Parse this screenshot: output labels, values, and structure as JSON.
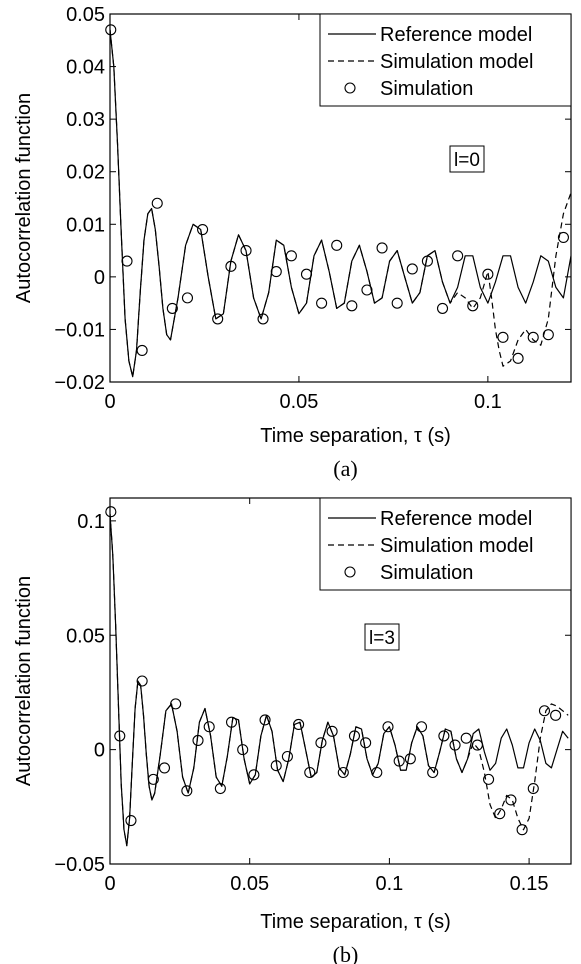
{
  "chart_data": [
    {
      "id": "a",
      "type": "line",
      "caption": "(a)",
      "annotation": "l=0",
      "xlabel": "Time separation, τ (s)",
      "ylabel": "Autocorrelation function",
      "xlim": [
        0,
        0.122
      ],
      "ylim": [
        -0.02,
        0.05
      ],
      "xticks": [
        0,
        0.05,
        0.1
      ],
      "xtick_labels": [
        "0",
        "0.05",
        "0.1"
      ],
      "yticks": [
        -0.02,
        -0.01,
        0,
        0.01,
        0.02,
        0.03,
        0.04,
        0.05
      ],
      "ytick_labels": [
        "−0.02",
        "−0.01",
        "0",
        "0.01",
        "0.02",
        "0.03",
        "0.04",
        "0.05"
      ],
      "legend_position": "top-right",
      "legend": [
        {
          "label": "Reference model",
          "style": "solid"
        },
        {
          "label": "Simulation model",
          "style": "dashed"
        },
        {
          "label": "Simulation",
          "style": "circle"
        }
      ],
      "series": [
        {
          "style": "solid",
          "x": [
            0,
            0.001,
            0.002,
            0.003,
            0.004,
            0.005,
            0.006,
            0.007,
            0.008,
            0.009,
            0.01,
            0.011,
            0.012,
            0.013,
            0.014,
            0.015,
            0.016,
            0.018,
            0.02,
            0.022,
            0.024,
            0.026,
            0.028,
            0.03,
            0.032,
            0.034,
            0.036,
            0.038,
            0.04,
            0.042,
            0.044,
            0.046,
            0.048,
            0.05,
            0.052,
            0.054,
            0.056,
            0.058,
            0.06,
            0.062,
            0.064,
            0.066,
            0.068,
            0.07,
            0.072,
            0.074,
            0.076,
            0.078,
            0.08,
            0.082,
            0.084,
            0.086,
            0.088,
            0.09,
            0.092,
            0.094,
            0.096,
            0.098,
            0.1,
            0.102,
            0.104,
            0.106,
            0.108,
            0.11,
            0.112,
            0.114,
            0.116,
            0.118,
            0.12,
            0.122
          ],
          "y": [
            0.047,
            0.04,
            0.025,
            0.008,
            -0.008,
            -0.016,
            -0.019,
            -0.014,
            -0.003,
            0.007,
            0.012,
            0.013,
            0.009,
            0.002,
            -0.006,
            -0.011,
            -0.012,
            -0.004,
            0.006,
            0.01,
            0.009,
            0.0,
            -0.008,
            -0.007,
            0.003,
            0.008,
            0.005,
            -0.004,
            -0.008,
            -0.003,
            0.007,
            0.006,
            -0.002,
            -0.007,
            -0.005,
            0.004,
            0.007,
            0.001,
            -0.006,
            -0.005,
            0.003,
            0.006,
            0.001,
            -0.005,
            -0.004,
            0.003,
            0.005,
            0.0,
            -0.005,
            -0.003,
            0.004,
            0.005,
            -0.001,
            -0.005,
            -0.002,
            0.004,
            0.004,
            -0.002,
            -0.005,
            -0.001,
            0.004,
            0.004,
            -0.002,
            -0.005,
            -0.001,
            0.004,
            0.003,
            -0.002,
            -0.004,
            0.004
          ]
        },
        {
          "style": "dashed",
          "x": [
            0,
            0.001,
            0.002,
            0.003,
            0.004,
            0.005,
            0.006,
            0.007,
            0.008,
            0.009,
            0.01,
            0.011,
            0.012,
            0.013,
            0.014,
            0.015,
            0.016,
            0.018,
            0.02,
            0.022,
            0.024,
            0.026,
            0.028,
            0.03,
            0.032,
            0.034,
            0.036,
            0.038,
            0.04,
            0.042,
            0.044,
            0.046,
            0.048,
            0.05,
            0.052,
            0.054,
            0.056,
            0.058,
            0.06,
            0.062,
            0.064,
            0.066,
            0.068,
            0.07,
            0.072,
            0.074,
            0.076,
            0.078,
            0.08,
            0.082,
            0.084,
            0.086,
            0.088,
            0.09,
            0.092,
            0.094,
            0.096,
            0.098,
            0.1,
            0.101,
            0.102,
            0.103,
            0.104,
            0.106,
            0.108,
            0.11,
            0.112,
            0.114,
            0.116,
            0.118,
            0.12,
            0.122
          ],
          "y": [
            0.047,
            0.04,
            0.025,
            0.008,
            -0.008,
            -0.016,
            -0.019,
            -0.014,
            -0.003,
            0.007,
            0.012,
            0.013,
            0.009,
            0.002,
            -0.006,
            -0.011,
            -0.012,
            -0.004,
            0.006,
            0.01,
            0.009,
            0.0,
            -0.008,
            -0.007,
            0.003,
            0.008,
            0.005,
            -0.004,
            -0.008,
            -0.003,
            0.007,
            0.006,
            -0.002,
            -0.007,
            -0.005,
            0.004,
            0.007,
            0.001,
            -0.006,
            -0.005,
            0.003,
            0.006,
            0.001,
            -0.005,
            -0.004,
            0.003,
            0.005,
            0.0,
            -0.005,
            -0.003,
            0.004,
            0.005,
            -0.001,
            -0.005,
            -0.003,
            -0.004,
            -0.006,
            -0.004,
            0.001,
            -0.004,
            -0.01,
            -0.014,
            -0.017,
            -0.016,
            -0.012,
            -0.01,
            -0.012,
            -0.013,
            -0.008,
            0.004,
            0.012,
            0.016
          ]
        },
        {
          "style": "circle",
          "x": [
            0.0002,
            0.0045,
            0.0085,
            0.0125,
            0.0165,
            0.0205,
            0.0245,
            0.0285,
            0.032,
            0.036,
            0.0405,
            0.044,
            0.048,
            0.052,
            0.056,
            0.06,
            0.064,
            0.068,
            0.072,
            0.076,
            0.08,
            0.084,
            0.088,
            0.092,
            0.096,
            0.1,
            0.104,
            0.108,
            0.112,
            0.116,
            0.12
          ],
          "y": [
            0.047,
            0.003,
            -0.014,
            0.014,
            -0.006,
            -0.004,
            0.009,
            -0.008,
            0.002,
            0.005,
            -0.008,
            0.001,
            0.004,
            0.0005,
            -0.005,
            0.006,
            -0.0055,
            -0.0025,
            0.0055,
            -0.005,
            0.0015,
            0.003,
            -0.006,
            0.004,
            -0.0055,
            0.0005,
            -0.0115,
            -0.0155,
            -0.0115,
            -0.011,
            0.0075
          ]
        }
      ]
    },
    {
      "id": "b",
      "type": "line",
      "caption": "(b)",
      "annotation": "l=3",
      "xlabel": "Time separation, τ (s)",
      "ylabel": "Autocorrelation function",
      "xlim": [
        0,
        0.165
      ],
      "ylim": [
        -0.05,
        0.11
      ],
      "xticks": [
        0,
        0.05,
        0.1,
        0.15
      ],
      "xtick_labels": [
        "0",
        "0.05",
        "0.1",
        "0.15"
      ],
      "yticks": [
        -0.05,
        0,
        0.05,
        0.1
      ],
      "ytick_labels": [
        "−0.05",
        "0",
        "0.05",
        "0.1"
      ],
      "legend_position": "top-right",
      "legend": [
        {
          "label": "Reference model",
          "style": "solid"
        },
        {
          "label": "Simulation model",
          "style": "dashed"
        },
        {
          "label": "Simulation",
          "style": "circle"
        }
      ],
      "series": [
        {
          "style": "solid",
          "x": [
            0,
            0.001,
            0.002,
            0.003,
            0.004,
            0.005,
            0.006,
            0.007,
            0.008,
            0.009,
            0.01,
            0.011,
            0.012,
            0.013,
            0.014,
            0.015,
            0.016,
            0.018,
            0.02,
            0.022,
            0.024,
            0.026,
            0.028,
            0.03,
            0.032,
            0.034,
            0.036,
            0.038,
            0.04,
            0.042,
            0.044,
            0.046,
            0.048,
            0.05,
            0.052,
            0.054,
            0.056,
            0.058,
            0.06,
            0.062,
            0.064,
            0.066,
            0.068,
            0.07,
            0.072,
            0.074,
            0.076,
            0.078,
            0.08,
            0.082,
            0.084,
            0.086,
            0.088,
            0.09,
            0.092,
            0.094,
            0.096,
            0.098,
            0.1,
            0.102,
            0.104,
            0.106,
            0.108,
            0.11,
            0.112,
            0.114,
            0.116,
            0.118,
            0.12,
            0.122,
            0.124,
            0.126,
            0.128,
            0.13,
            0.132,
            0.134,
            0.136,
            0.138,
            0.14,
            0.142,
            0.144,
            0.146,
            0.148,
            0.15,
            0.152,
            0.154,
            0.156,
            0.158,
            0.16,
            0.162,
            0.164
          ],
          "y": [
            0.103,
            0.085,
            0.055,
            0.02,
            -0.015,
            -0.035,
            -0.042,
            -0.03,
            -0.005,
            0.018,
            0.03,
            0.028,
            0.015,
            -0.002,
            -0.016,
            -0.022,
            -0.019,
            -0.002,
            0.017,
            0.02,
            0.008,
            -0.012,
            -0.019,
            -0.008,
            0.012,
            0.018,
            0.006,
            -0.012,
            -0.016,
            -0.003,
            0.014,
            0.013,
            -0.004,
            -0.015,
            -0.011,
            0.006,
            0.015,
            0.008,
            -0.009,
            -0.014,
            -0.004,
            0.011,
            0.012,
            0.0,
            -0.012,
            -0.01,
            0.004,
            0.012,
            0.006,
            -0.008,
            -0.011,
            -0.002,
            0.01,
            0.009,
            -0.004,
            -0.011,
            -0.006,
            0.007,
            0.01,
            0.002,
            -0.009,
            -0.009,
            0.003,
            0.01,
            0.006,
            -0.007,
            -0.01,
            -0.001,
            0.009,
            0.008,
            -0.004,
            -0.01,
            -0.004,
            0.007,
            0.009,
            -0.001,
            -0.009,
            -0.006,
            0.005,
            0.009,
            0.002,
            -0.008,
            -0.008,
            0.003,
            0.009,
            0.004,
            -0.006,
            -0.008,
            0.0,
            0.008,
            0.005
          ]
        },
        {
          "style": "dashed",
          "x": [
            0,
            0.001,
            0.002,
            0.003,
            0.004,
            0.005,
            0.006,
            0.007,
            0.008,
            0.009,
            0.01,
            0.011,
            0.012,
            0.013,
            0.014,
            0.015,
            0.016,
            0.018,
            0.02,
            0.022,
            0.024,
            0.026,
            0.028,
            0.03,
            0.032,
            0.034,
            0.036,
            0.038,
            0.04,
            0.042,
            0.044,
            0.046,
            0.048,
            0.05,
            0.052,
            0.054,
            0.056,
            0.058,
            0.06,
            0.062,
            0.064,
            0.066,
            0.068,
            0.07,
            0.072,
            0.074,
            0.076,
            0.078,
            0.08,
            0.082,
            0.084,
            0.086,
            0.088,
            0.09,
            0.092,
            0.094,
            0.096,
            0.098,
            0.1,
            0.102,
            0.104,
            0.106,
            0.108,
            0.11,
            0.112,
            0.114,
            0.116,
            0.118,
            0.12,
            0.122,
            0.124,
            0.126,
            0.128,
            0.13,
            0.132,
            0.134,
            0.136,
            0.138,
            0.14,
            0.142,
            0.144,
            0.146,
            0.148,
            0.15,
            0.152,
            0.154,
            0.156,
            0.158,
            0.16,
            0.162,
            0.164
          ],
          "y": [
            0.103,
            0.085,
            0.055,
            0.02,
            -0.015,
            -0.035,
            -0.042,
            -0.03,
            -0.005,
            0.018,
            0.03,
            0.028,
            0.015,
            -0.002,
            -0.016,
            -0.022,
            -0.019,
            -0.002,
            0.017,
            0.02,
            0.008,
            -0.012,
            -0.019,
            -0.008,
            0.012,
            0.018,
            0.006,
            -0.012,
            -0.016,
            -0.003,
            0.014,
            0.013,
            -0.004,
            -0.015,
            -0.011,
            0.006,
            0.015,
            0.008,
            -0.009,
            -0.014,
            -0.004,
            0.011,
            0.012,
            0.0,
            -0.012,
            -0.01,
            0.004,
            0.012,
            0.006,
            -0.008,
            -0.011,
            -0.002,
            0.01,
            0.009,
            -0.004,
            -0.011,
            -0.006,
            0.007,
            0.01,
            0.002,
            -0.009,
            -0.009,
            0.003,
            0.01,
            0.006,
            -0.007,
            -0.01,
            -0.001,
            0.009,
            0.008,
            -0.004,
            -0.01,
            -0.004,
            0.003,
            0.0,
            -0.01,
            -0.024,
            -0.03,
            -0.026,
            -0.02,
            -0.022,
            -0.03,
            -0.035,
            -0.03,
            -0.014,
            0.005,
            0.017,
            0.02,
            0.019,
            0.017,
            0.015
          ]
        },
        {
          "style": "circle",
          "x": [
            0.0003,
            0.0035,
            0.0075,
            0.0115,
            0.0155,
            0.0195,
            0.0235,
            0.0275,
            0.0315,
            0.0355,
            0.0395,
            0.0435,
            0.0475,
            0.0515,
            0.0555,
            0.0595,
            0.0635,
            0.0675,
            0.0715,
            0.0755,
            0.0795,
            0.0835,
            0.0875,
            0.0915,
            0.0955,
            0.0995,
            0.1035,
            0.1075,
            0.1115,
            0.1155,
            0.1195,
            0.1235,
            0.1275,
            0.1315,
            0.1355,
            0.1395,
            0.1435,
            0.1475,
            0.1515,
            0.1555,
            0.1595
          ],
          "y": [
            0.104,
            0.006,
            -0.031,
            0.03,
            -0.013,
            -0.008,
            0.02,
            -0.018,
            0.004,
            0.01,
            -0.017,
            0.012,
            0.0,
            -0.011,
            0.013,
            -0.007,
            -0.003,
            0.011,
            -0.01,
            0.003,
            0.008,
            -0.01,
            0.006,
            0.003,
            -0.01,
            0.01,
            -0.005,
            -0.004,
            0.01,
            -0.01,
            0.006,
            0.002,
            0.005,
            0.002,
            -0.013,
            -0.028,
            -0.022,
            -0.035,
            -0.017,
            0.017,
            0.015
          ]
        }
      ]
    }
  ]
}
